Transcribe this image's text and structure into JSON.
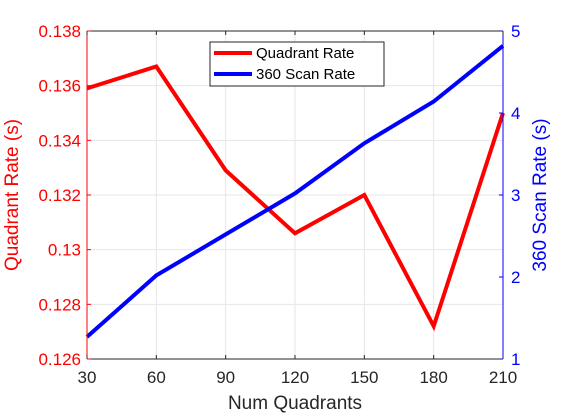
{
  "chart_data": {
    "type": "line",
    "x": [
      30,
      60,
      90,
      120,
      150,
      180,
      210
    ],
    "xlabel": "Num Quadrants",
    "xlim": [
      30,
      210
    ],
    "xticks": [
      "30",
      "60",
      "90",
      "120",
      "150",
      "180",
      "210"
    ],
    "grid": true,
    "legend": "top-center",
    "left_axis": {
      "ylabel": "Quadrant Rate (s)",
      "ylim": [
        0.126,
        0.138
      ],
      "yticks": [
        "0.126",
        "0.128",
        "0.13",
        "0.132",
        "0.134",
        "0.136",
        "0.138"
      ],
      "color": "#ff0000"
    },
    "right_axis": {
      "ylabel": "360 Scan Rate (s)",
      "ylim": [
        1,
        5
      ],
      "yticks": [
        "1",
        "2",
        "3",
        "4",
        "5"
      ],
      "color": "#0000ff"
    },
    "series": [
      {
        "name": "Quadrant Rate",
        "axis": "left",
        "color": "#ff0000",
        "values": [
          0.1359,
          0.1367,
          0.1329,
          0.1306,
          0.132,
          0.1272,
          0.135
        ]
      },
      {
        "name": "360 Scan Rate",
        "axis": "right",
        "color": "#0000ff",
        "values": [
          1.27,
          2.02,
          2.52,
          3.02,
          3.63,
          4.14,
          4.82
        ]
      }
    ]
  }
}
